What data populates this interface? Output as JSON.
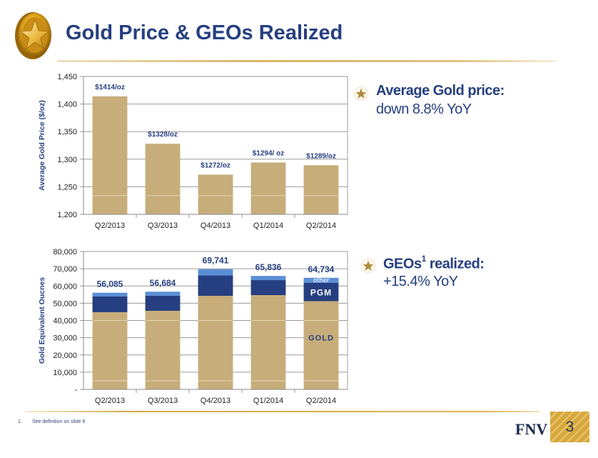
{
  "header": {
    "title": "Gold Price & GEOs Realized",
    "logo": "gold-star-coin-icon"
  },
  "colors": {
    "title": "#263f80",
    "gold_bar": "#c6ad7a",
    "pgm_bar": "#263f80",
    "other_bar": "#5a8fd6",
    "data_label": "#263f80",
    "accent_rule": "#d8b466"
  },
  "bullets": [
    {
      "icon": "star-bullet-icon",
      "heading": "Average Gold price:",
      "superscript": "",
      "heading_suffix": "",
      "detail": "down 8.8% YoY"
    },
    {
      "icon": "star-bullet-icon",
      "heading": "GEOs",
      "superscript": "1",
      "heading_suffix": " realized:",
      "detail": "+15.4% YoY"
    }
  ],
  "chart_data": [
    {
      "type": "bar",
      "title": "",
      "xlabel": "",
      "ylabel": "Average Gold Price ($/oz)",
      "categories": [
        "Q2/2013",
        "Q3/2013",
        "Q4/2013",
        "Q1/2014",
        "Q2/2014"
      ],
      "values": [
        1414,
        1328,
        1272,
        1294,
        1289
      ],
      "data_labels": [
        "$1414/oz",
        "$1328/oz",
        "$1272/oz",
        "$1294/ oz",
        "$1289/oz"
      ],
      "ylim": [
        1200,
        1450
      ],
      "yticks": [
        1200,
        1250,
        1300,
        1350,
        1400,
        1450
      ],
      "ytick_labels": [
        "1,200",
        "1,250",
        "1,300",
        "1,350",
        "1,400",
        "1,450"
      ],
      "grid": true,
      "legend": "none"
    },
    {
      "type": "bar",
      "stacked": true,
      "title": "",
      "xlabel": "",
      "ylabel": "Gold Equivalent Oucnes",
      "categories": [
        "Q2/2013",
        "Q3/2013",
        "Q4/2013",
        "Q1/2014",
        "Q2/2014"
      ],
      "series": [
        {
          "name": "GOLD",
          "values": [
            44800,
            45600,
            54300,
            54700,
            51200
          ]
        },
        {
          "name": "PGM",
          "values": [
            9200,
            8800,
            11800,
            8700,
            10700
          ]
        },
        {
          "name": "other",
          "values": [
            2085,
            2284,
            3641,
            2436,
            2834
          ]
        }
      ],
      "totals": [
        56085,
        56684,
        69741,
        65836,
        64734
      ],
      "total_labels": [
        "56,085",
        "56,684",
        "69,741",
        "65,836",
        "64,734"
      ],
      "ylim": [
        0,
        80000
      ],
      "yticks": [
        0,
        10000,
        20000,
        30000,
        40000,
        50000,
        60000,
        70000,
        80000
      ],
      "ytick_labels": [
        "-",
        "10,000",
        "20,000",
        "30,000",
        "40,000",
        "50,000",
        "60,000",
        "70,000",
        "80,000"
      ],
      "grid": true,
      "legend": "inside last bar (segment labels)",
      "segment_labels": {
        "other": "other",
        "PGM": "PGM",
        "GOLD": "GOLD"
      }
    }
  ],
  "footer": {
    "footnote_number": "1.",
    "footnote_text": "See definition on slide 6",
    "brand": "FNV",
    "page_number": "3"
  }
}
